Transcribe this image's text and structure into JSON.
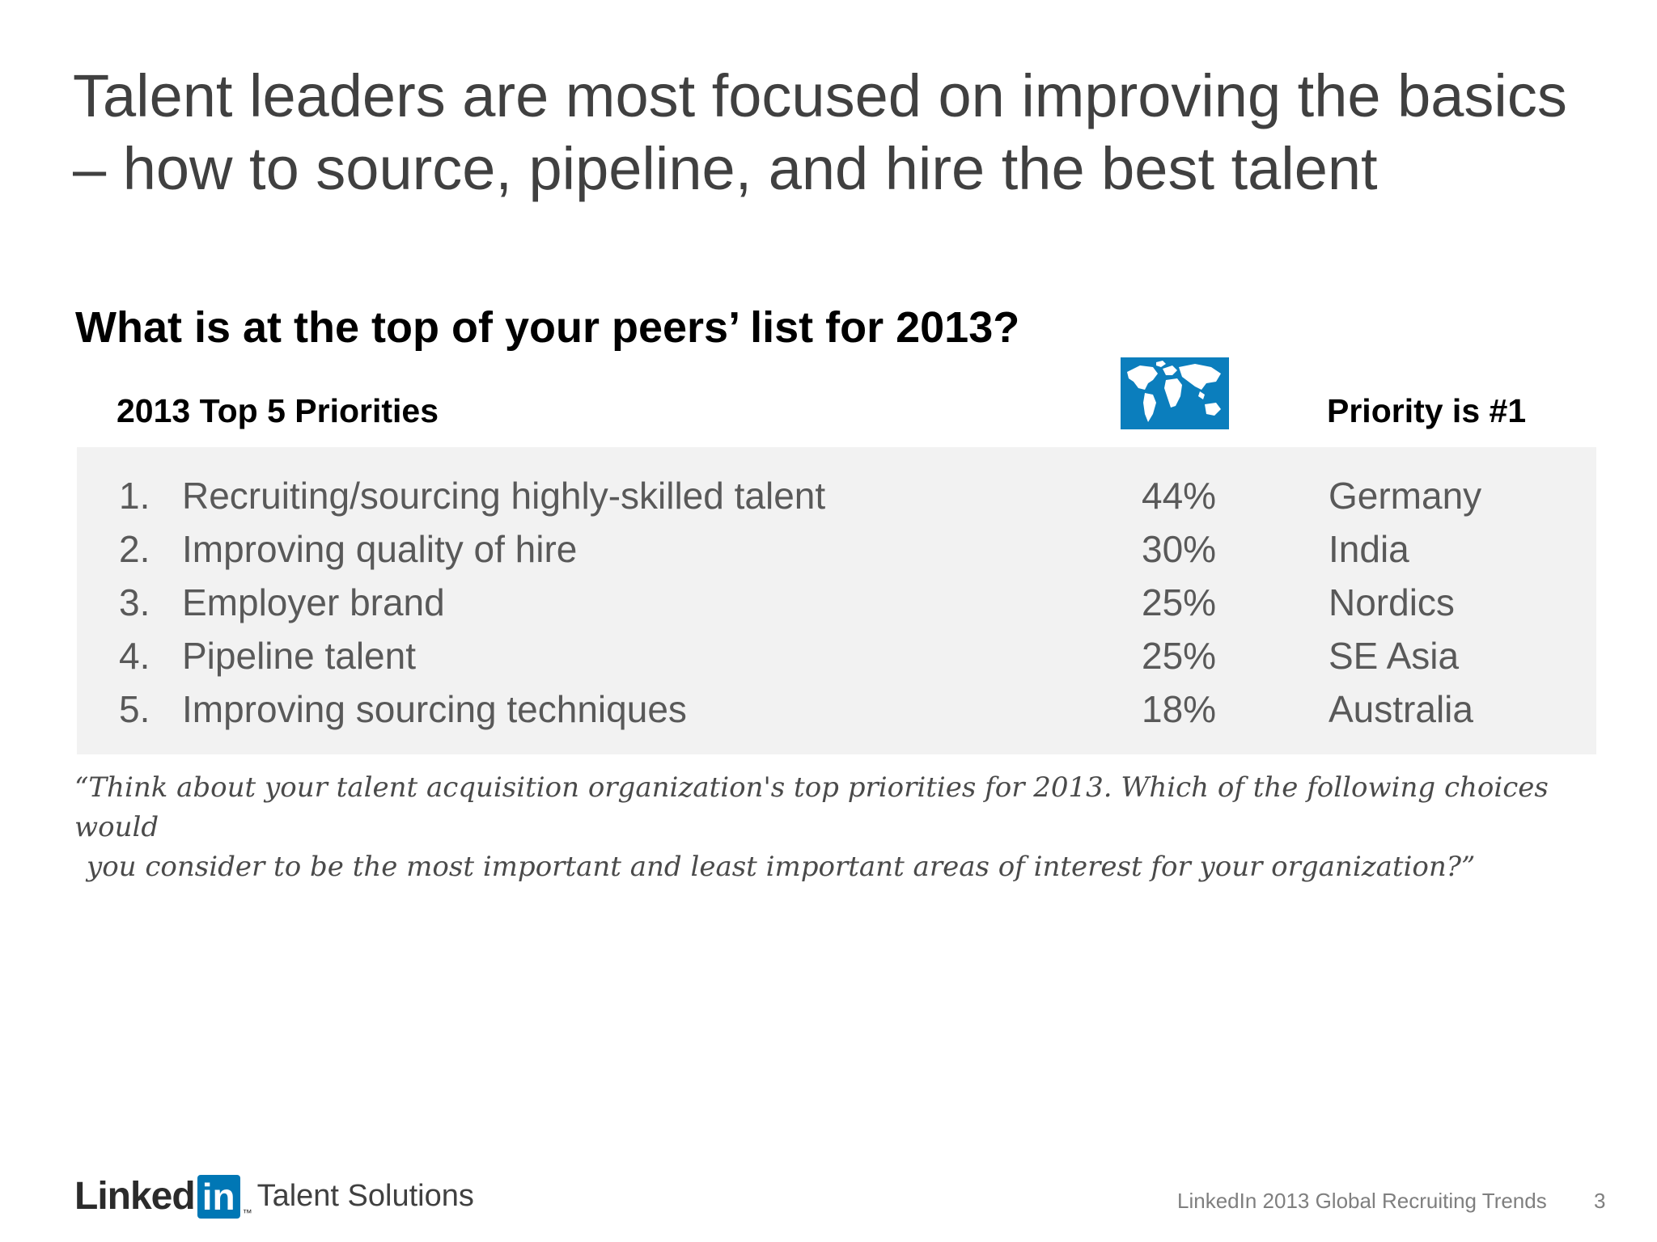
{
  "headline": {
    "line1": "Talent leaders are most focused on improving the basics",
    "line2": "– how to source, pipeline, and hire the best talent"
  },
  "question": "What is at the top of your peers’ list for 2013?",
  "columns": {
    "priorities": "2013 Top 5 Priorities",
    "globe_icon": "world-map-icon",
    "top_region": "Priority is #1"
  },
  "priorities": [
    {
      "num": "1.",
      "label": "Recruiting/sourcing highly-skilled talent",
      "pct": "44%",
      "region": "Germany"
    },
    {
      "num": "2.",
      "label": "Improving quality of hire",
      "pct": "30%",
      "region": "India"
    },
    {
      "num": "3.",
      "label": "Employer brand",
      "pct": "25%",
      "region": "Nordics"
    },
    {
      "num": "4.",
      "label": "Pipeline talent",
      "pct": "25%",
      "region": "SE Asia"
    },
    {
      "num": "5.",
      "label": "Improving sourcing techniques",
      "pct": "18%",
      "region": "Australia"
    }
  ],
  "quote": {
    "line1": "“Think about your talent acquisition organization's top priorities for 2013. Which of the following choices would",
    "line2": "you consider to be the most important and least important areas of interest for your organization?”"
  },
  "footer": {
    "logo_word": "Linked",
    "logo_box": "in",
    "logo_tm": "™",
    "logo_suffix": "Talent Solutions",
    "source": "LinkedIn 2013 Global Recruiting Trends",
    "page": "3"
  },
  "colors": {
    "globe_bg": "#0b7ebd",
    "panel_bg": "#f2f2f2",
    "linkedin_blue": "#0077b5"
  }
}
